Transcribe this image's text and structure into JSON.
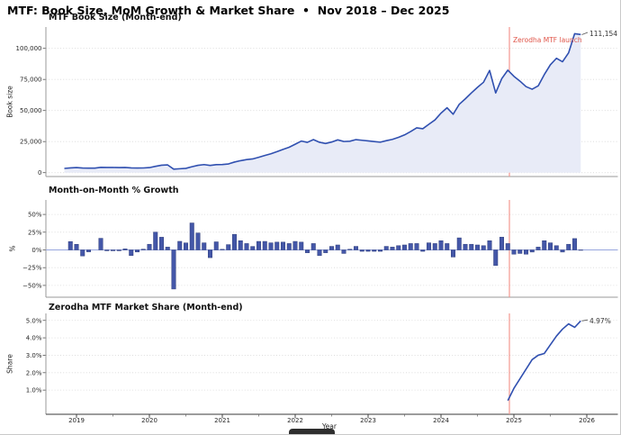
{
  "title": "MTF: Book Size, MoM Growth & Market Share  •  Nov 2018 – Dec 2025",
  "colors": {
    "line_blue": "#3050b0",
    "bar_blue": "#4457a8",
    "bar_edge": "#303f7c",
    "area_fill": "#e8ebf7",
    "vline_red": "#f2978f",
    "red_text": "#e0564a",
    "grid": "#d8d8d8",
    "spine": "#9a9a9a",
    "axis_dark": "#3a3a3a",
    "zero_line": "#97a6de",
    "tick_text": "#262626"
  },
  "xaxis": {
    "label": "Year",
    "ticks": [
      "2019",
      "2020",
      "2021",
      "2022",
      "2023",
      "2024",
      "2025",
      "2026"
    ]
  },
  "vline": {
    "month": "2024-12",
    "label": "Zerodha MTF launch"
  },
  "chart_data": [
    {
      "type": "area",
      "title": "MTF Book Size (Month-end)",
      "ylabel": "Book size",
      "yticks": [
        0,
        25000,
        50000,
        75000,
        100000
      ],
      "ytick_labels": [
        "0",
        "25,000",
        "50,000",
        "75,000",
        "100,000"
      ],
      "start_month": "2018-11",
      "end_month": "2025-12",
      "end_label": "111,154",
      "values": [
        3400,
        3800,
        4100,
        3750,
        3650,
        3650,
        4250,
        4200,
        4150,
        4100,
        4160,
        3830,
        3720,
        3760,
        4060,
        5080,
        5990,
        6230,
        2800,
        3140,
        3450,
        4760,
        5900,
        6490,
        5780,
        6440,
        6500,
        6990,
        8530,
        9640,
        10510,
        11030,
        12350,
        13830,
        15210,
        16880,
        18740,
        20430,
        22880,
        25400,
        24380,
        26570,
        24440,
        23470,
        24640,
        26370,
        25050,
        25300,
        26570,
        26040,
        25520,
        25010,
        24510,
        25740,
        26770,
        28380,
        30360,
        33090,
        36070,
        35350,
        38890,
        42390,
        47900,
        52210,
        46990,
        54980,
        59380,
        64130,
        68620,
        72740,
        82200,
        64120,
        75660,
        82470,
        77520,
        73640,
        69220,
        67140,
        69820,
        78900,
        86790,
        92000,
        89240,
        96380,
        111800,
        111154
      ]
    },
    {
      "type": "bar",
      "title": "Month-on-Month % Growth",
      "ylabel": "%",
      "yticks": [
        50,
        25,
        0,
        -25,
        -50
      ],
      "ytick_labels": [
        "50%",
        "25%",
        "0%",
        "−25%",
        "−50%"
      ],
      "start_month": "2018-12",
      "values": [
        11.8,
        7.9,
        -8.5,
        -2.7,
        0.0,
        16.4,
        -1.2,
        -1.2,
        -1.2,
        1.5,
        -7.9,
        -2.9,
        1.1,
        8.0,
        25.1,
        17.9,
        4.0,
        -55.1,
        12.1,
        9.9,
        38.0,
        23.9,
        10.0,
        -10.9,
        11.4,
        0.9,
        7.5,
        22.0,
        13.0,
        9.0,
        4.9,
        12.0,
        12.0,
        10.0,
        11.0,
        11.0,
        9.0,
        12.0,
        11.0,
        -4.0,
        9.0,
        -8.0,
        -4.0,
        5.0,
        7.0,
        -5.0,
        1.0,
        5.0,
        -2.0,
        -2.0,
        -2.0,
        -2.0,
        5.0,
        4.0,
        6.0,
        7.0,
        9.0,
        9.0,
        -2.0,
        10.0,
        9.0,
        13.0,
        9.0,
        -10.0,
        17.0,
        8.0,
        8.0,
        7.0,
        6.0,
        13.0,
        -22.0,
        18.0,
        9.0,
        -6.0,
        -5.0,
        -6.0,
        -3.0,
        4.0,
        13.0,
        10.0,
        6.0,
        -3.0,
        8.0,
        16.0,
        -0.6
      ]
    },
    {
      "type": "line",
      "title": "Zerodha MTF Market Share (Month-end)",
      "ylabel": "Share",
      "yticks": [
        1,
        2,
        3,
        4,
        5
      ],
      "ytick_labels": [
        "1.0%",
        "2.0%",
        "3.0%",
        "4.0%",
        "5.0%"
      ],
      "start_month": "2024-12",
      "end_label": "4.97%",
      "values": [
        0.4,
        1.1,
        1.65,
        2.2,
        2.75,
        3.0,
        3.1,
        3.6,
        4.1,
        4.5,
        4.8,
        4.6,
        4.97
      ]
    }
  ]
}
